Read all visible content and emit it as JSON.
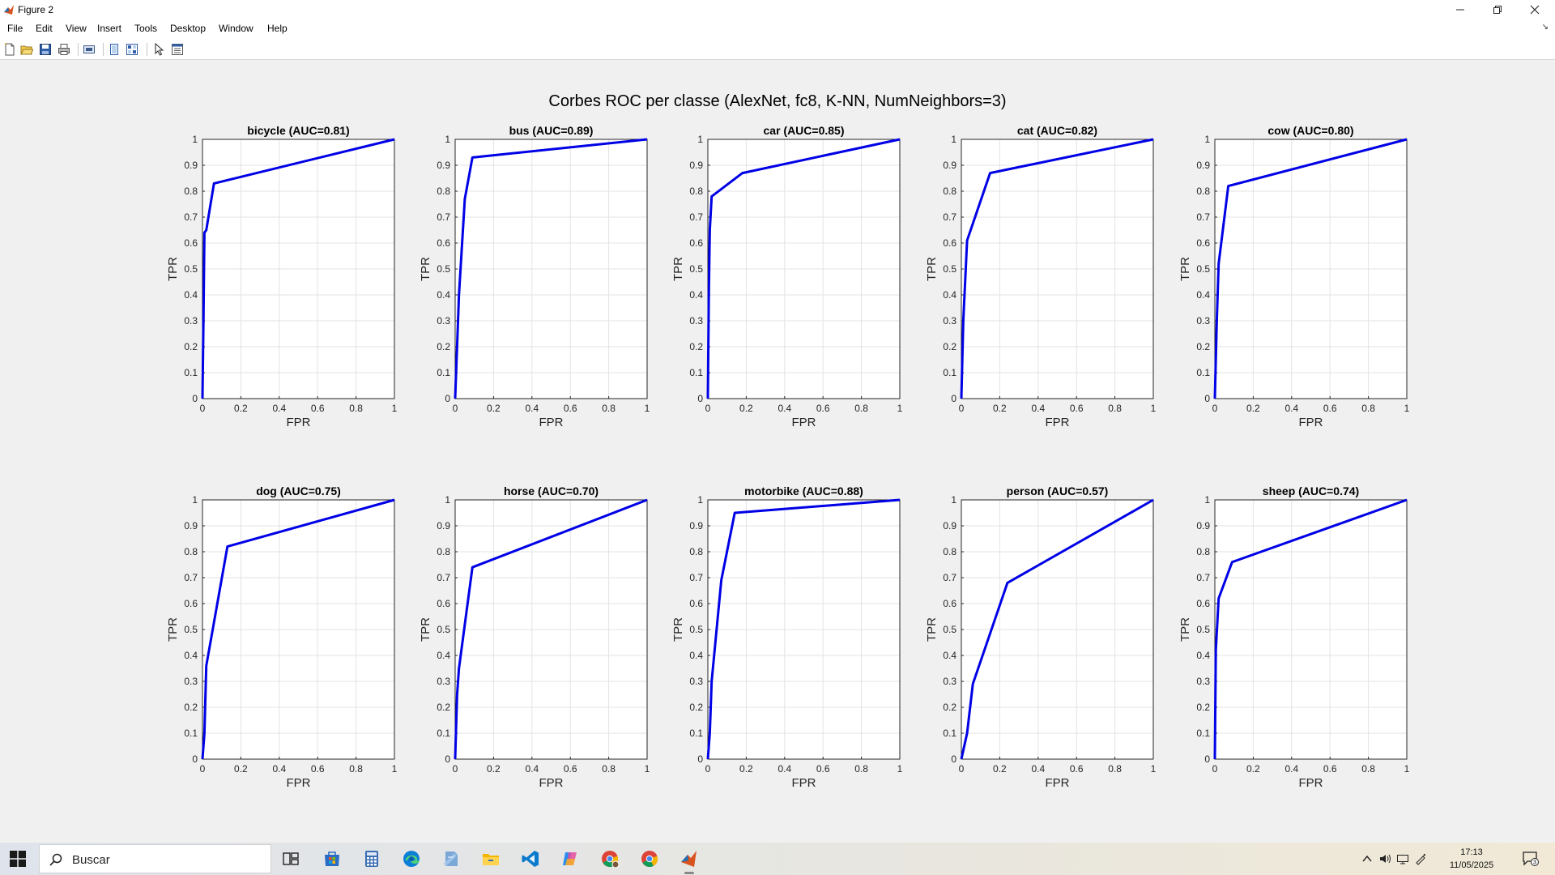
{
  "window": {
    "title": "Figure 2"
  },
  "menu": [
    "File",
    "Edit",
    "View",
    "Insert",
    "Tools",
    "Desktop",
    "Window",
    "Help"
  ],
  "toolbar_icons": [
    "new-figure-icon",
    "open-file-icon",
    "save-icon",
    "print-icon",
    "print-preview-icon",
    "dock-icon",
    "tile-icon",
    "pointer-icon",
    "property-inspector-icon"
  ],
  "figure": {
    "suptitle": "Corbes ROC per classe (AlexNet, fc8, K-NN, NumNeighbors=3)",
    "line_color": "#0000e6"
  },
  "chart_data": [
    {
      "type": "line",
      "title": "bicycle (AUC=0.81)",
      "xlabel": "FPR",
      "ylabel": "TPR",
      "xlim": [
        0,
        1
      ],
      "ylim": [
        0,
        1
      ],
      "grid": true,
      "xticks": [
        "0",
        "0.2",
        "0.4",
        "0.6",
        "0.8",
        "1"
      ],
      "yticks": [
        "0",
        "0.1",
        "0.2",
        "0.3",
        "0.4",
        "0.5",
        "0.6",
        "0.7",
        "0.8",
        "0.9",
        "1"
      ],
      "x": [
        0,
        0.005,
        0.01,
        0.02,
        0.06,
        1
      ],
      "y": [
        0,
        0.3,
        0.64,
        0.65,
        0.83,
        1
      ]
    },
    {
      "type": "line",
      "title": "bus (AUC=0.89)",
      "xlabel": "FPR",
      "ylabel": "TPR",
      "xlim": [
        0,
        1
      ],
      "ylim": [
        0,
        1
      ],
      "grid": true,
      "xticks": [
        "0",
        "0.2",
        "0.4",
        "0.6",
        "0.8",
        "1"
      ],
      "yticks": [
        "0",
        "0.1",
        "0.2",
        "0.3",
        "0.4",
        "0.5",
        "0.6",
        "0.7",
        "0.8",
        "0.9",
        "1"
      ],
      "x": [
        0,
        0.02,
        0.05,
        0.09,
        1
      ],
      "y": [
        0,
        0.4,
        0.77,
        0.93,
        1
      ]
    },
    {
      "type": "line",
      "title": "car (AUC=0.85)",
      "xlabel": "FPR",
      "ylabel": "TPR",
      "xlim": [
        0,
        1
      ],
      "ylim": [
        0,
        1
      ],
      "grid": true,
      "xticks": [
        "0",
        "0.2",
        "0.4",
        "0.6",
        "0.8",
        "1"
      ],
      "yticks": [
        "0",
        "0.1",
        "0.2",
        "0.3",
        "0.4",
        "0.5",
        "0.6",
        "0.7",
        "0.8",
        "0.9",
        "1"
      ],
      "x": [
        0,
        0.005,
        0.01,
        0.02,
        0.18,
        1
      ],
      "y": [
        0,
        0.4,
        0.65,
        0.78,
        0.87,
        1
      ]
    },
    {
      "type": "line",
      "title": "cat (AUC=0.82)",
      "xlabel": "FPR",
      "ylabel": "TPR",
      "xlim": [
        0,
        1
      ],
      "ylim": [
        0,
        1
      ],
      "grid": true,
      "xticks": [
        "0",
        "0.2",
        "0.4",
        "0.6",
        "0.8",
        "1"
      ],
      "yticks": [
        "0",
        "0.1",
        "0.2",
        "0.3",
        "0.4",
        "0.5",
        "0.6",
        "0.7",
        "0.8",
        "0.9",
        "1"
      ],
      "x": [
        0,
        0.01,
        0.03,
        0.15,
        1
      ],
      "y": [
        0,
        0.3,
        0.61,
        0.87,
        1
      ]
    },
    {
      "type": "line",
      "title": "cow (AUC=0.80)",
      "xlabel": "FPR",
      "ylabel": "TPR",
      "xlim": [
        0,
        1
      ],
      "ylim": [
        0,
        1
      ],
      "grid": true,
      "xticks": [
        "0",
        "0.2",
        "0.4",
        "0.6",
        "0.8",
        "1"
      ],
      "yticks": [
        "0",
        "0.1",
        "0.2",
        "0.3",
        "0.4",
        "0.5",
        "0.6",
        "0.7",
        "0.8",
        "0.9",
        "1"
      ],
      "x": [
        0,
        0.01,
        0.02,
        0.07,
        1
      ],
      "y": [
        0,
        0.3,
        0.52,
        0.82,
        1
      ]
    },
    {
      "type": "line",
      "title": "dog (AUC=0.75)",
      "xlabel": "FPR",
      "ylabel": "TPR",
      "xlim": [
        0,
        1
      ],
      "ylim": [
        0,
        1
      ],
      "grid": true,
      "xticks": [
        "0",
        "0.2",
        "0.4",
        "0.6",
        "0.8",
        "1"
      ],
      "yticks": [
        "0",
        "0.1",
        "0.2",
        "0.3",
        "0.4",
        "0.5",
        "0.6",
        "0.7",
        "0.8",
        "0.9",
        "1"
      ],
      "x": [
        0,
        0.01,
        0.02,
        0.13,
        1
      ],
      "y": [
        0,
        0.1,
        0.36,
        0.82,
        1
      ]
    },
    {
      "type": "line",
      "title": "horse (AUC=0.70)",
      "xlabel": "FPR",
      "ylabel": "TPR",
      "xlim": [
        0,
        1
      ],
      "ylim": [
        0,
        1
      ],
      "grid": true,
      "xticks": [
        "0",
        "0.2",
        "0.4",
        "0.6",
        "0.8",
        "1"
      ],
      "yticks": [
        "0",
        "0.1",
        "0.2",
        "0.3",
        "0.4",
        "0.5",
        "0.6",
        "0.7",
        "0.8",
        "0.9",
        "1"
      ],
      "x": [
        0,
        0.01,
        0.02,
        0.09,
        1
      ],
      "y": [
        0,
        0.25,
        0.35,
        0.74,
        1
      ]
    },
    {
      "type": "line",
      "title": "motorbike (AUC=0.88)",
      "xlabel": "FPR",
      "ylabel": "TPR",
      "xlim": [
        0,
        1
      ],
      "ylim": [
        0,
        1
      ],
      "grid": true,
      "xticks": [
        "0",
        "0.2",
        "0.4",
        "0.6",
        "0.8",
        "1"
      ],
      "yticks": [
        "0",
        "0.1",
        "0.2",
        "0.3",
        "0.4",
        "0.5",
        "0.6",
        "0.7",
        "0.8",
        "0.9",
        "1"
      ],
      "x": [
        0,
        0.01,
        0.02,
        0.07,
        0.14,
        1
      ],
      "y": [
        0,
        0.1,
        0.3,
        0.69,
        0.95,
        1
      ]
    },
    {
      "type": "line",
      "title": "person (AUC=0.57)",
      "xlabel": "FPR",
      "ylabel": "TPR",
      "xlim": [
        0,
        1
      ],
      "ylim": [
        0,
        1
      ],
      "grid": true,
      "xticks": [
        "0",
        "0.2",
        "0.4",
        "0.6",
        "0.8",
        "1"
      ],
      "yticks": [
        "0",
        "0.1",
        "0.2",
        "0.3",
        "0.4",
        "0.5",
        "0.6",
        "0.7",
        "0.8",
        "0.9",
        "1"
      ],
      "x": [
        0,
        0.03,
        0.06,
        0.24,
        1
      ],
      "y": [
        0,
        0.1,
        0.29,
        0.68,
        1
      ]
    },
    {
      "type": "line",
      "title": "sheep (AUC=0.74)",
      "xlabel": "FPR",
      "ylabel": "TPR",
      "xlim": [
        0,
        1
      ],
      "ylim": [
        0,
        1
      ],
      "grid": true,
      "xticks": [
        "0",
        "0.2",
        "0.4",
        "0.6",
        "0.8",
        "1"
      ],
      "yticks": [
        "0",
        "0.1",
        "0.2",
        "0.3",
        "0.4",
        "0.5",
        "0.6",
        "0.7",
        "0.8",
        "0.9",
        "1"
      ],
      "x": [
        0,
        0.005,
        0.02,
        0.09,
        1
      ],
      "y": [
        0,
        0.42,
        0.62,
        0.76,
        1
      ]
    }
  ],
  "taskbar": {
    "search_placeholder": "Buscar",
    "apps": [
      "task-view-icon",
      "store-icon",
      "calculator-icon",
      "edge-icon",
      "notepad-icon",
      "file-explorer-icon",
      "vscode-icon",
      "copilot-icon",
      "chrome-profile-icon",
      "chrome-icon",
      "matlab-icon"
    ],
    "clock_time": "17:13",
    "clock_date": "11/05/2025",
    "notification_count": "3"
  }
}
